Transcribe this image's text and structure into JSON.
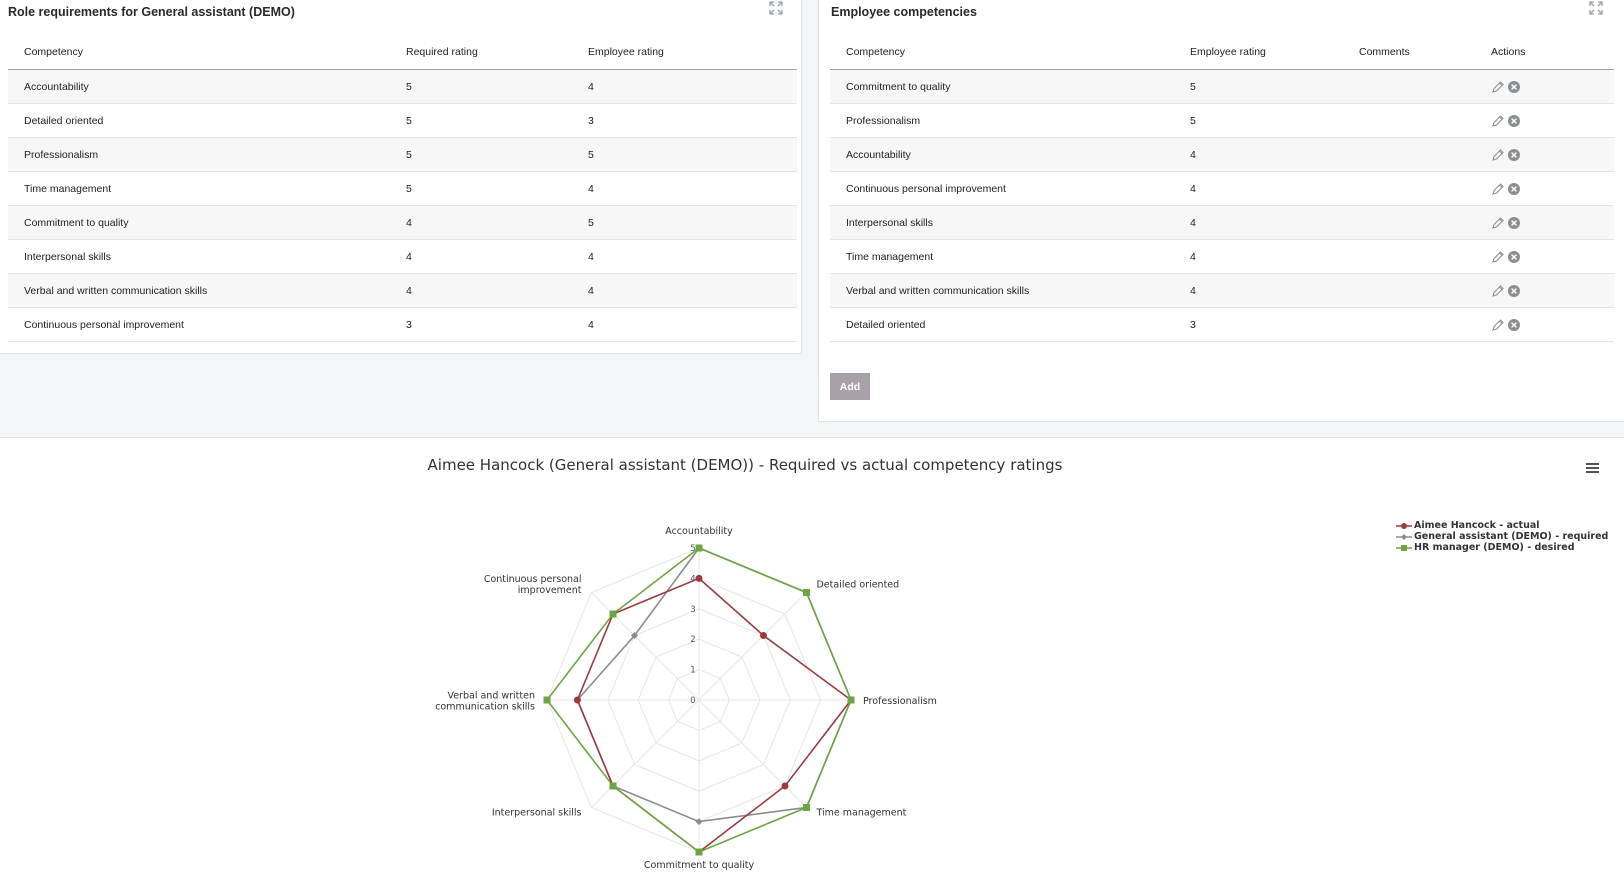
{
  "role_panel": {
    "title": "Role requirements for General assistant (DEMO)",
    "columns": [
      "Competency",
      "Required rating",
      "Employee rating"
    ],
    "rows": [
      [
        "Accountability",
        "5",
        "4"
      ],
      [
        "Detailed oriented",
        "5",
        "3"
      ],
      [
        "Professionalism",
        "5",
        "5"
      ],
      [
        "Time management",
        "5",
        "4"
      ],
      [
        "Commitment to quality",
        "4",
        "5"
      ],
      [
        "Interpersonal skills",
        "4",
        "4"
      ],
      [
        "Verbal and written communication skills",
        "4",
        "4"
      ],
      [
        "Continuous personal improvement",
        "3",
        "4"
      ]
    ]
  },
  "employee_panel": {
    "title": "Employee competencies",
    "columns": [
      "Competency",
      "Employee rating",
      "Comments",
      "Actions"
    ],
    "rows": [
      [
        "Commitment to quality",
        "5",
        ""
      ],
      [
        "Professionalism",
        "5",
        ""
      ],
      [
        "Accountability",
        "4",
        ""
      ],
      [
        "Continuous personal improvement",
        "4",
        ""
      ],
      [
        "Interpersonal skills",
        "4",
        ""
      ],
      [
        "Time management",
        "4",
        ""
      ],
      [
        "Verbal and written communication skills",
        "4",
        ""
      ],
      [
        "Detailed oriented",
        "3",
        ""
      ]
    ],
    "add_label": "Add"
  },
  "icons": {
    "expand": "expand-icon",
    "edit": "pencil-icon",
    "delete": "remove-circle-icon",
    "menu": "hamburger-menu-icon"
  },
  "colors": {
    "actual": "#9b3b3e",
    "required": "#8c8c8c",
    "desired": "#6da545",
    "add_button": "#a9a1a8"
  },
  "chart_data": {
    "type": "radar",
    "title": "Aimee Hancock (General assistant (DEMO)) - Required vs actual competency ratings",
    "categories": [
      "Accountability",
      "Detailed oriented",
      "Professionalism",
      "Time management",
      "Commitment to quality",
      "Interpersonal skills",
      "Verbal and written communication skills",
      "Continuous personal improvement"
    ],
    "category_labels": [
      [
        "Accountability"
      ],
      [
        "Detailed oriented"
      ],
      [
        "Professionalism"
      ],
      [
        "Time management"
      ],
      [
        "Commitment to quality"
      ],
      [
        "Interpersonal skills"
      ],
      [
        "Verbal and written",
        "communication skills"
      ],
      [
        "Continuous personal",
        "improvement"
      ]
    ],
    "rlim": [
      0,
      5
    ],
    "ticks": [
      "0",
      "1",
      "2",
      "3",
      "4",
      "5"
    ],
    "legend_position": "top-right",
    "series": [
      {
        "name": "Aimee Hancock - actual",
        "values": [
          4,
          3,
          5,
          4,
          5,
          4,
          4,
          4
        ],
        "marker": "circle",
        "color": "#9b3b3e"
      },
      {
        "name": "General assistant (DEMO) - required",
        "values": [
          5,
          5,
          5,
          5,
          4,
          4,
          4,
          3
        ],
        "marker": "diamond",
        "color": "#8c8c8c"
      },
      {
        "name": "HR manager (DEMO) - desired",
        "values": [
          5,
          5,
          5,
          5,
          5,
          4,
          5,
          4
        ],
        "marker": "square",
        "color": "#6da545"
      }
    ]
  }
}
